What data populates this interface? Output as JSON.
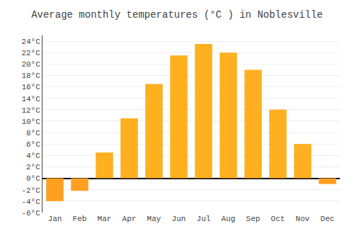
{
  "chart_data": {
    "type": "bar",
    "title": "Average monthly temperatures (°C ) in Noblesville",
    "categories": [
      "Jan",
      "Feb",
      "Mar",
      "Apr",
      "May",
      "Jun",
      "Jul",
      "Aug",
      "Sep",
      "Oct",
      "Nov",
      "Dec"
    ],
    "values": [
      -4.0,
      -2.2,
      4.5,
      10.5,
      16.5,
      21.5,
      23.5,
      22.0,
      19.0,
      12.0,
      6.0,
      -1.0
    ],
    "colors": [
      "#FFA020",
      "#FFA020",
      "#FFB020",
      "#FFB020",
      "#FFB020",
      "#FFB020",
      "#FFB020",
      "#FFB020",
      "#FFB020",
      "#FFB020",
      "#FFB020",
      "#FFA020"
    ],
    "ylim": [
      -6,
      25
    ],
    "yticks": [
      {
        "value": -6,
        "label": "-6°C"
      },
      {
        "value": -4,
        "label": "-4°C"
      },
      {
        "value": -2,
        "label": "-2°C"
      },
      {
        "value": 0,
        "label": "0°C"
      },
      {
        "value": 2,
        "label": "2°C"
      },
      {
        "value": 4,
        "label": "4°C"
      },
      {
        "value": 6,
        "label": "6°C"
      },
      {
        "value": 8,
        "label": "8°C"
      },
      {
        "value": 10,
        "label": "10°C"
      },
      {
        "value": 12,
        "label": "12°C"
      },
      {
        "value": 14,
        "label": "14°C"
      },
      {
        "value": 16,
        "label": "16°C"
      },
      {
        "value": 18,
        "label": "18°C"
      },
      {
        "value": 20,
        "label": "20°C"
      },
      {
        "value": 22,
        "label": "22°C"
      },
      {
        "value": 24,
        "label": "24°C"
      }
    ],
    "grid": true
  }
}
